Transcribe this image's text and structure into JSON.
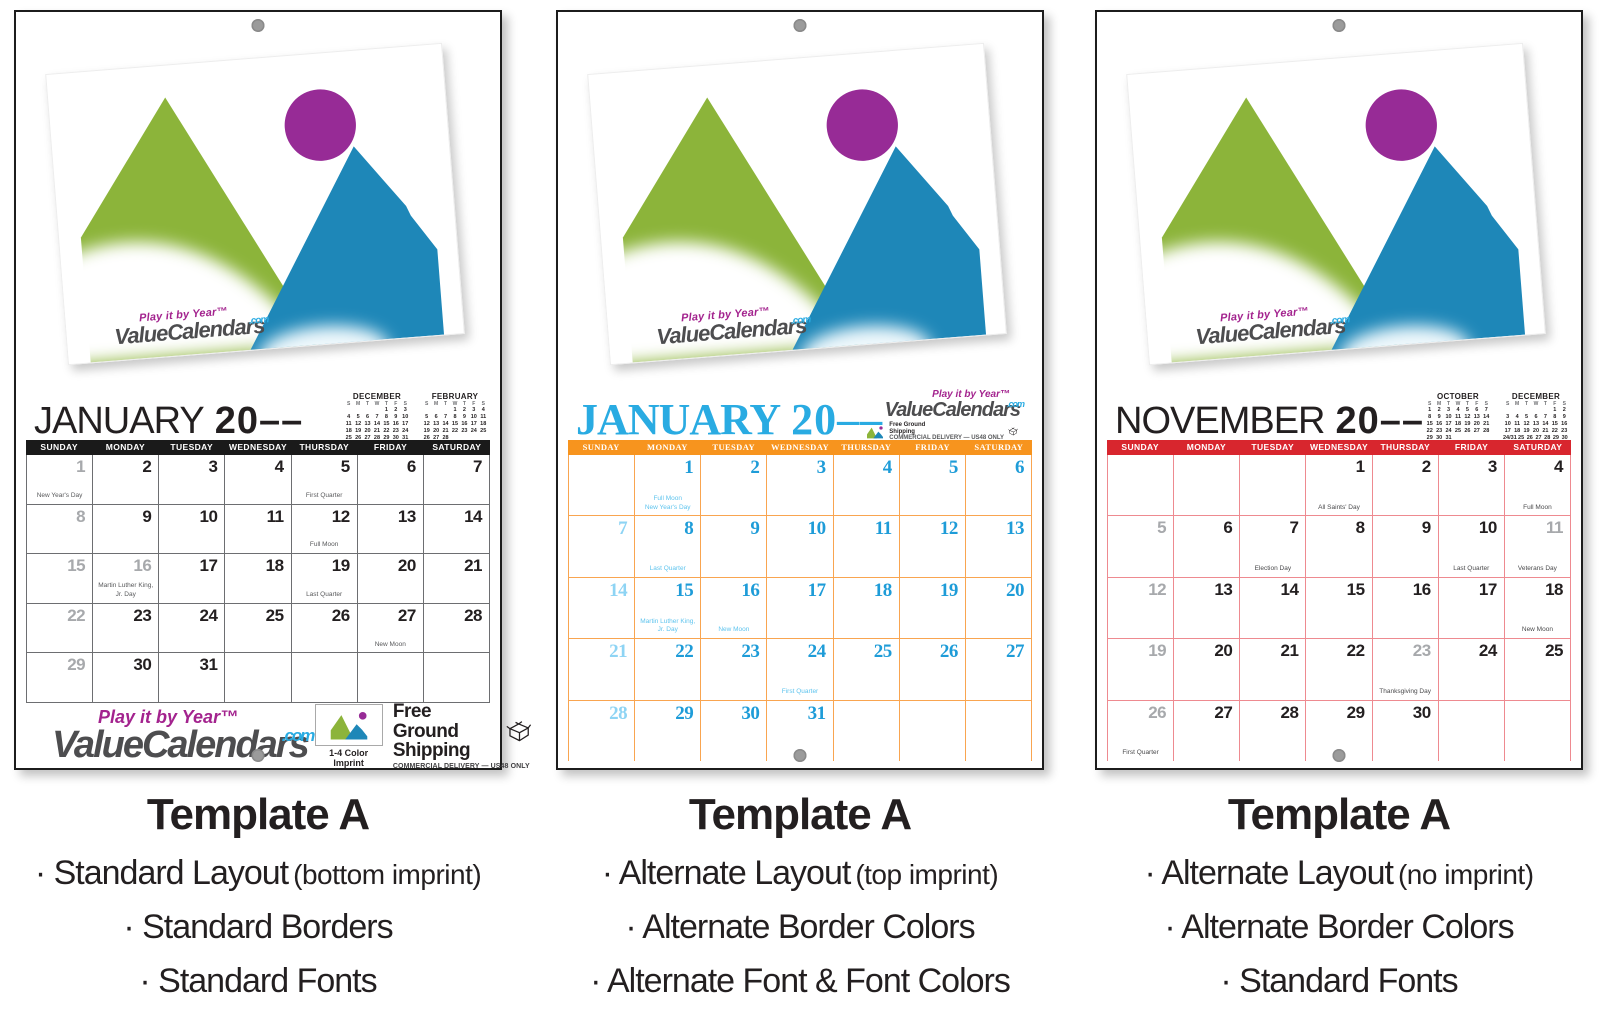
{
  "weekdays": [
    "SUNDAY",
    "MONDAY",
    "TUESDAY",
    "WEDNESDAY",
    "THURSDAY",
    "FRIDAY",
    "SATURDAY"
  ],
  "mini_day_letters": [
    "S",
    "M",
    "T",
    "W",
    "T",
    "F",
    "S"
  ],
  "imprint": {
    "tagline": "Play it by Year™",
    "brand": "ValueCalendars",
    "tld": ".com",
    "box_label": "1-4 Color Imprint",
    "shipping_line1": "Free Ground",
    "shipping_line2": "Shipping",
    "shipping_note": "COMMERCIAL DELIVERY — US48 ONLY"
  },
  "palette": {
    "artwork_green": "#8CB43A",
    "artwork_blue": "#1E87B8",
    "artwork_purple": "#972B96",
    "logo_purple": "#A3238E",
    "logo_gray": "#4D4D4F",
    "logo_blue": "#29ABE2",
    "standard_bar_black": "#1A1A1A",
    "alternate_bar_orange": "#F7941E",
    "alternate_bar_red": "#D8262E"
  },
  "calendars": [
    {
      "month": "JANUARY",
      "year": "20––",
      "style": {
        "bar": "#1A1A1A",
        "line": "#6d6e71",
        "day": "#231F20",
        "muted": "#A7A9AC",
        "note": "#58595B",
        "title": "#231F20"
      },
      "minis": [
        {
          "name": "DECEMBER",
          "weeks": [
            [
              "",
              "",
              "",
              "",
              "1",
              "2",
              "3"
            ],
            [
              "4",
              "5",
              "6",
              "7",
              "8",
              "9",
              "10"
            ],
            [
              "11",
              "12",
              "13",
              "14",
              "15",
              "16",
              "17"
            ],
            [
              "18",
              "19",
              "20",
              "21",
              "22",
              "23",
              "24"
            ],
            [
              "25",
              "26",
              "27",
              "28",
              "29",
              "30",
              "31"
            ]
          ]
        },
        {
          "name": "FEBRUARY",
          "weeks": [
            [
              "",
              "",
              "",
              "1",
              "2",
              "3",
              "4"
            ],
            [
              "5",
              "6",
              "7",
              "8",
              "9",
              "10",
              "11"
            ],
            [
              "12",
              "13",
              "14",
              "15",
              "16",
              "17",
              "18"
            ],
            [
              "19",
              "20",
              "21",
              "22",
              "23",
              "24",
              "25"
            ],
            [
              "26",
              "27",
              "28",
              "",
              "",
              "",
              ""
            ]
          ]
        }
      ],
      "weeks": [
        [
          {
            "d": "1",
            "muted": true,
            "notes": [
              "New Year's Day"
            ]
          },
          {
            "d": "2"
          },
          {
            "d": "3"
          },
          {
            "d": "4"
          },
          {
            "d": "5",
            "notes": [
              "First Quarter"
            ]
          },
          {
            "d": "6"
          },
          {
            "d": "7"
          }
        ],
        [
          {
            "d": "8",
            "muted": true
          },
          {
            "d": "9"
          },
          {
            "d": "10"
          },
          {
            "d": "11"
          },
          {
            "d": "12",
            "notes": [
              "Full Moon"
            ]
          },
          {
            "d": "13"
          },
          {
            "d": "14"
          }
        ],
        [
          {
            "d": "15",
            "muted": true
          },
          {
            "d": "16",
            "muted": true,
            "notes": [
              "Martin Luther King, Jr. Day"
            ]
          },
          {
            "d": "17"
          },
          {
            "d": "18"
          },
          {
            "d": "19",
            "notes": [
              "Last Quarter"
            ]
          },
          {
            "d": "20"
          },
          {
            "d": "21"
          }
        ],
        [
          {
            "d": "22",
            "muted": true
          },
          {
            "d": "23"
          },
          {
            "d": "24"
          },
          {
            "d": "25"
          },
          {
            "d": "26"
          },
          {
            "d": "27",
            "notes": [
              "New Moon"
            ]
          },
          {
            "d": "28"
          }
        ],
        [
          {
            "d": "29",
            "muted": true
          },
          {
            "d": "30"
          },
          {
            "d": "31"
          },
          {},
          {},
          {},
          {}
        ]
      ]
    },
    {
      "month": "JANUARY",
      "year": "20––",
      "style": {
        "bar": "#F7941E",
        "line": "#F9A550",
        "day": "#1E9CD8",
        "muted": "#8ED4F4",
        "note": "#5FC4EE",
        "title": "#29ABE2"
      },
      "minis": null,
      "weeks": [
        [
          {},
          {
            "d": "1",
            "notes": [
              "Full Moon",
              "New Year's Day"
            ]
          },
          {
            "d": "2"
          },
          {
            "d": "3"
          },
          {
            "d": "4"
          },
          {
            "d": "5"
          },
          {
            "d": "6"
          }
        ],
        [
          {
            "d": "7",
            "muted": true
          },
          {
            "d": "8",
            "notes": [
              "Last Quarter"
            ]
          },
          {
            "d": "9"
          },
          {
            "d": "10"
          },
          {
            "d": "11"
          },
          {
            "d": "12"
          },
          {
            "d": "13"
          }
        ],
        [
          {
            "d": "14",
            "muted": true
          },
          {
            "d": "15",
            "notes": [
              "Martin Luther King, Jr. Day"
            ]
          },
          {
            "d": "16",
            "notes": [
              "New Moon"
            ]
          },
          {
            "d": "17"
          },
          {
            "d": "18"
          },
          {
            "d": "19"
          },
          {
            "d": "20"
          }
        ],
        [
          {
            "d": "21",
            "muted": true
          },
          {
            "d": "22"
          },
          {
            "d": "23"
          },
          {
            "d": "24",
            "notes": [
              "First Quarter"
            ]
          },
          {
            "d": "25"
          },
          {
            "d": "26"
          },
          {
            "d": "27"
          }
        ],
        [
          {
            "d": "28",
            "muted": true
          },
          {
            "d": "29"
          },
          {
            "d": "30"
          },
          {
            "d": "31"
          },
          {},
          {},
          {}
        ]
      ]
    },
    {
      "month": "NOVEMBER",
      "year": "20––",
      "style": {
        "bar": "#D8262E",
        "line": "#EE8A90",
        "day": "#231F20",
        "muted": "#A7A9AC",
        "note": "#4a4a4c",
        "title": "#231F20"
      },
      "minis": [
        {
          "name": "OCTOBER",
          "weeks": [
            [
              "1",
              "2",
              "3",
              "4",
              "5",
              "6",
              "7"
            ],
            [
              "8",
              "9",
              "10",
              "11",
              "12",
              "13",
              "14"
            ],
            [
              "15",
              "16",
              "17",
              "18",
              "19",
              "20",
              "21"
            ],
            [
              "22",
              "23",
              "24",
              "25",
              "26",
              "27",
              "28"
            ],
            [
              "29",
              "30",
              "31",
              "",
              "",
              "",
              ""
            ]
          ]
        },
        {
          "name": "DECEMBER",
          "weeks": [
            [
              "",
              "",
              "",
              "",
              "",
              "1",
              "2"
            ],
            [
              "3",
              "4",
              "5",
              "6",
              "7",
              "8",
              "9"
            ],
            [
              "10",
              "11",
              "12",
              "13",
              "14",
              "15",
              "16"
            ],
            [
              "17",
              "18",
              "19",
              "20",
              "21",
              "22",
              "23"
            ],
            [
              "24/31",
              "25",
              "26",
              "27",
              "28",
              "29",
              "30"
            ]
          ]
        }
      ],
      "weeks": [
        [
          {},
          {},
          {},
          {
            "d": "1",
            "notes": [
              "All Saints' Day"
            ]
          },
          {
            "d": "2"
          },
          {
            "d": "3"
          },
          {
            "d": "4",
            "notes": [
              "Full Moon"
            ]
          }
        ],
        [
          {
            "d": "5",
            "muted": true
          },
          {
            "d": "6"
          },
          {
            "d": "7",
            "notes": [
              "Election Day"
            ]
          },
          {
            "d": "8"
          },
          {
            "d": "9"
          },
          {
            "d": "10",
            "notes": [
              "Last Quarter"
            ]
          },
          {
            "d": "11",
            "muted": true,
            "notes": [
              "Veterans Day"
            ]
          }
        ],
        [
          {
            "d": "12",
            "muted": true
          },
          {
            "d": "13"
          },
          {
            "d": "14"
          },
          {
            "d": "15"
          },
          {
            "d": "16"
          },
          {
            "d": "17"
          },
          {
            "d": "18",
            "notes": [
              "New Moon"
            ]
          }
        ],
        [
          {
            "d": "19",
            "muted": true
          },
          {
            "d": "20"
          },
          {
            "d": "21"
          },
          {
            "d": "22"
          },
          {
            "d": "23",
            "muted": true,
            "notes": [
              "Thanksgiving Day"
            ]
          },
          {
            "d": "24"
          },
          {
            "d": "25"
          }
        ],
        [
          {
            "d": "26",
            "muted": true,
            "notes": [
              "First Quarter"
            ]
          },
          {
            "d": "27"
          },
          {
            "d": "28"
          },
          {
            "d": "29"
          },
          {
            "d": "30"
          },
          {},
          {}
        ]
      ]
    }
  ],
  "page": {
    "captions": [
      {
        "title": "Template A",
        "lines": [
          {
            "text": "· Standard Layout",
            "note": "(bottom imprint)"
          },
          {
            "text": "· Standard Borders"
          },
          {
            "text": "· Standard Fonts"
          }
        ]
      },
      {
        "title": "Template A",
        "lines": [
          {
            "text": "· Alternate Layout",
            "note": "(top imprint)"
          },
          {
            "text": "· Alternate Border Colors"
          },
          {
            "text": "· Alternate Font & Font Colors"
          }
        ]
      },
      {
        "title": "Template A",
        "lines": [
          {
            "text": "· Alternate Layout",
            "note": "(no imprint)"
          },
          {
            "text": "· Alternate Border Colors"
          },
          {
            "text": "· Standard Fonts"
          }
        ]
      }
    ]
  }
}
